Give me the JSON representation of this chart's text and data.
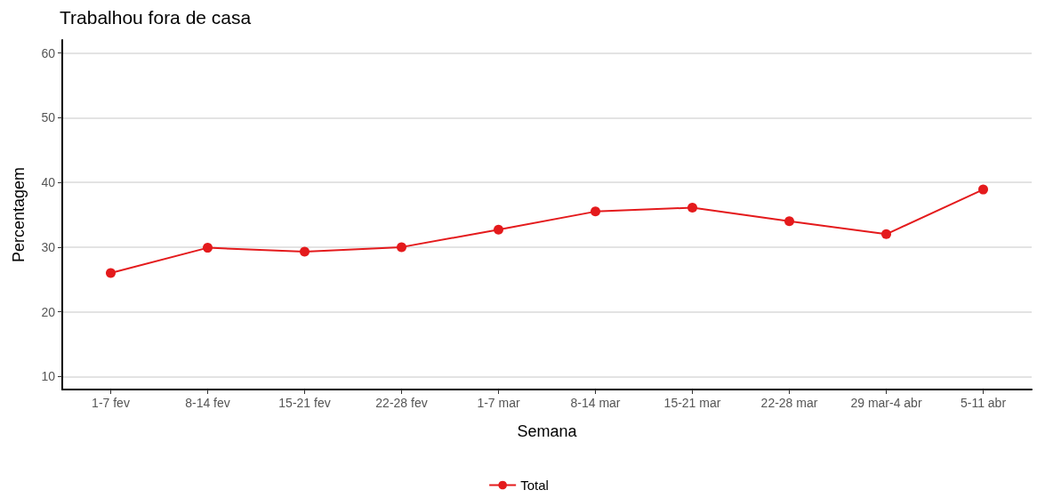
{
  "chart_data": {
    "type": "line",
    "title": "Trabalhou fora de casa",
    "xlabel": "Semana",
    "ylabel": "Percentagem",
    "categories": [
      "1-7 fev",
      "8-14 fev",
      "15-21 fev",
      "22-28 fev",
      "1-7 mar",
      "8-14 mar",
      "15-21 mar",
      "22-28 mar",
      "29 mar-4 abr",
      "5-11 abr"
    ],
    "series": [
      {
        "name": "Total",
        "color": "#e41a1c",
        "values": [
          26.0,
          29.9,
          29.3,
          30.0,
          32.7,
          35.5,
          36.1,
          34.0,
          32.0,
          38.9
        ]
      }
    ],
    "ylim": [
      8,
      62
    ],
    "yticks": [
      10,
      20,
      30,
      40,
      50,
      60
    ],
    "grid": "y",
    "legend": "bottom",
    "marker": "circle",
    "line_style": "solid"
  }
}
